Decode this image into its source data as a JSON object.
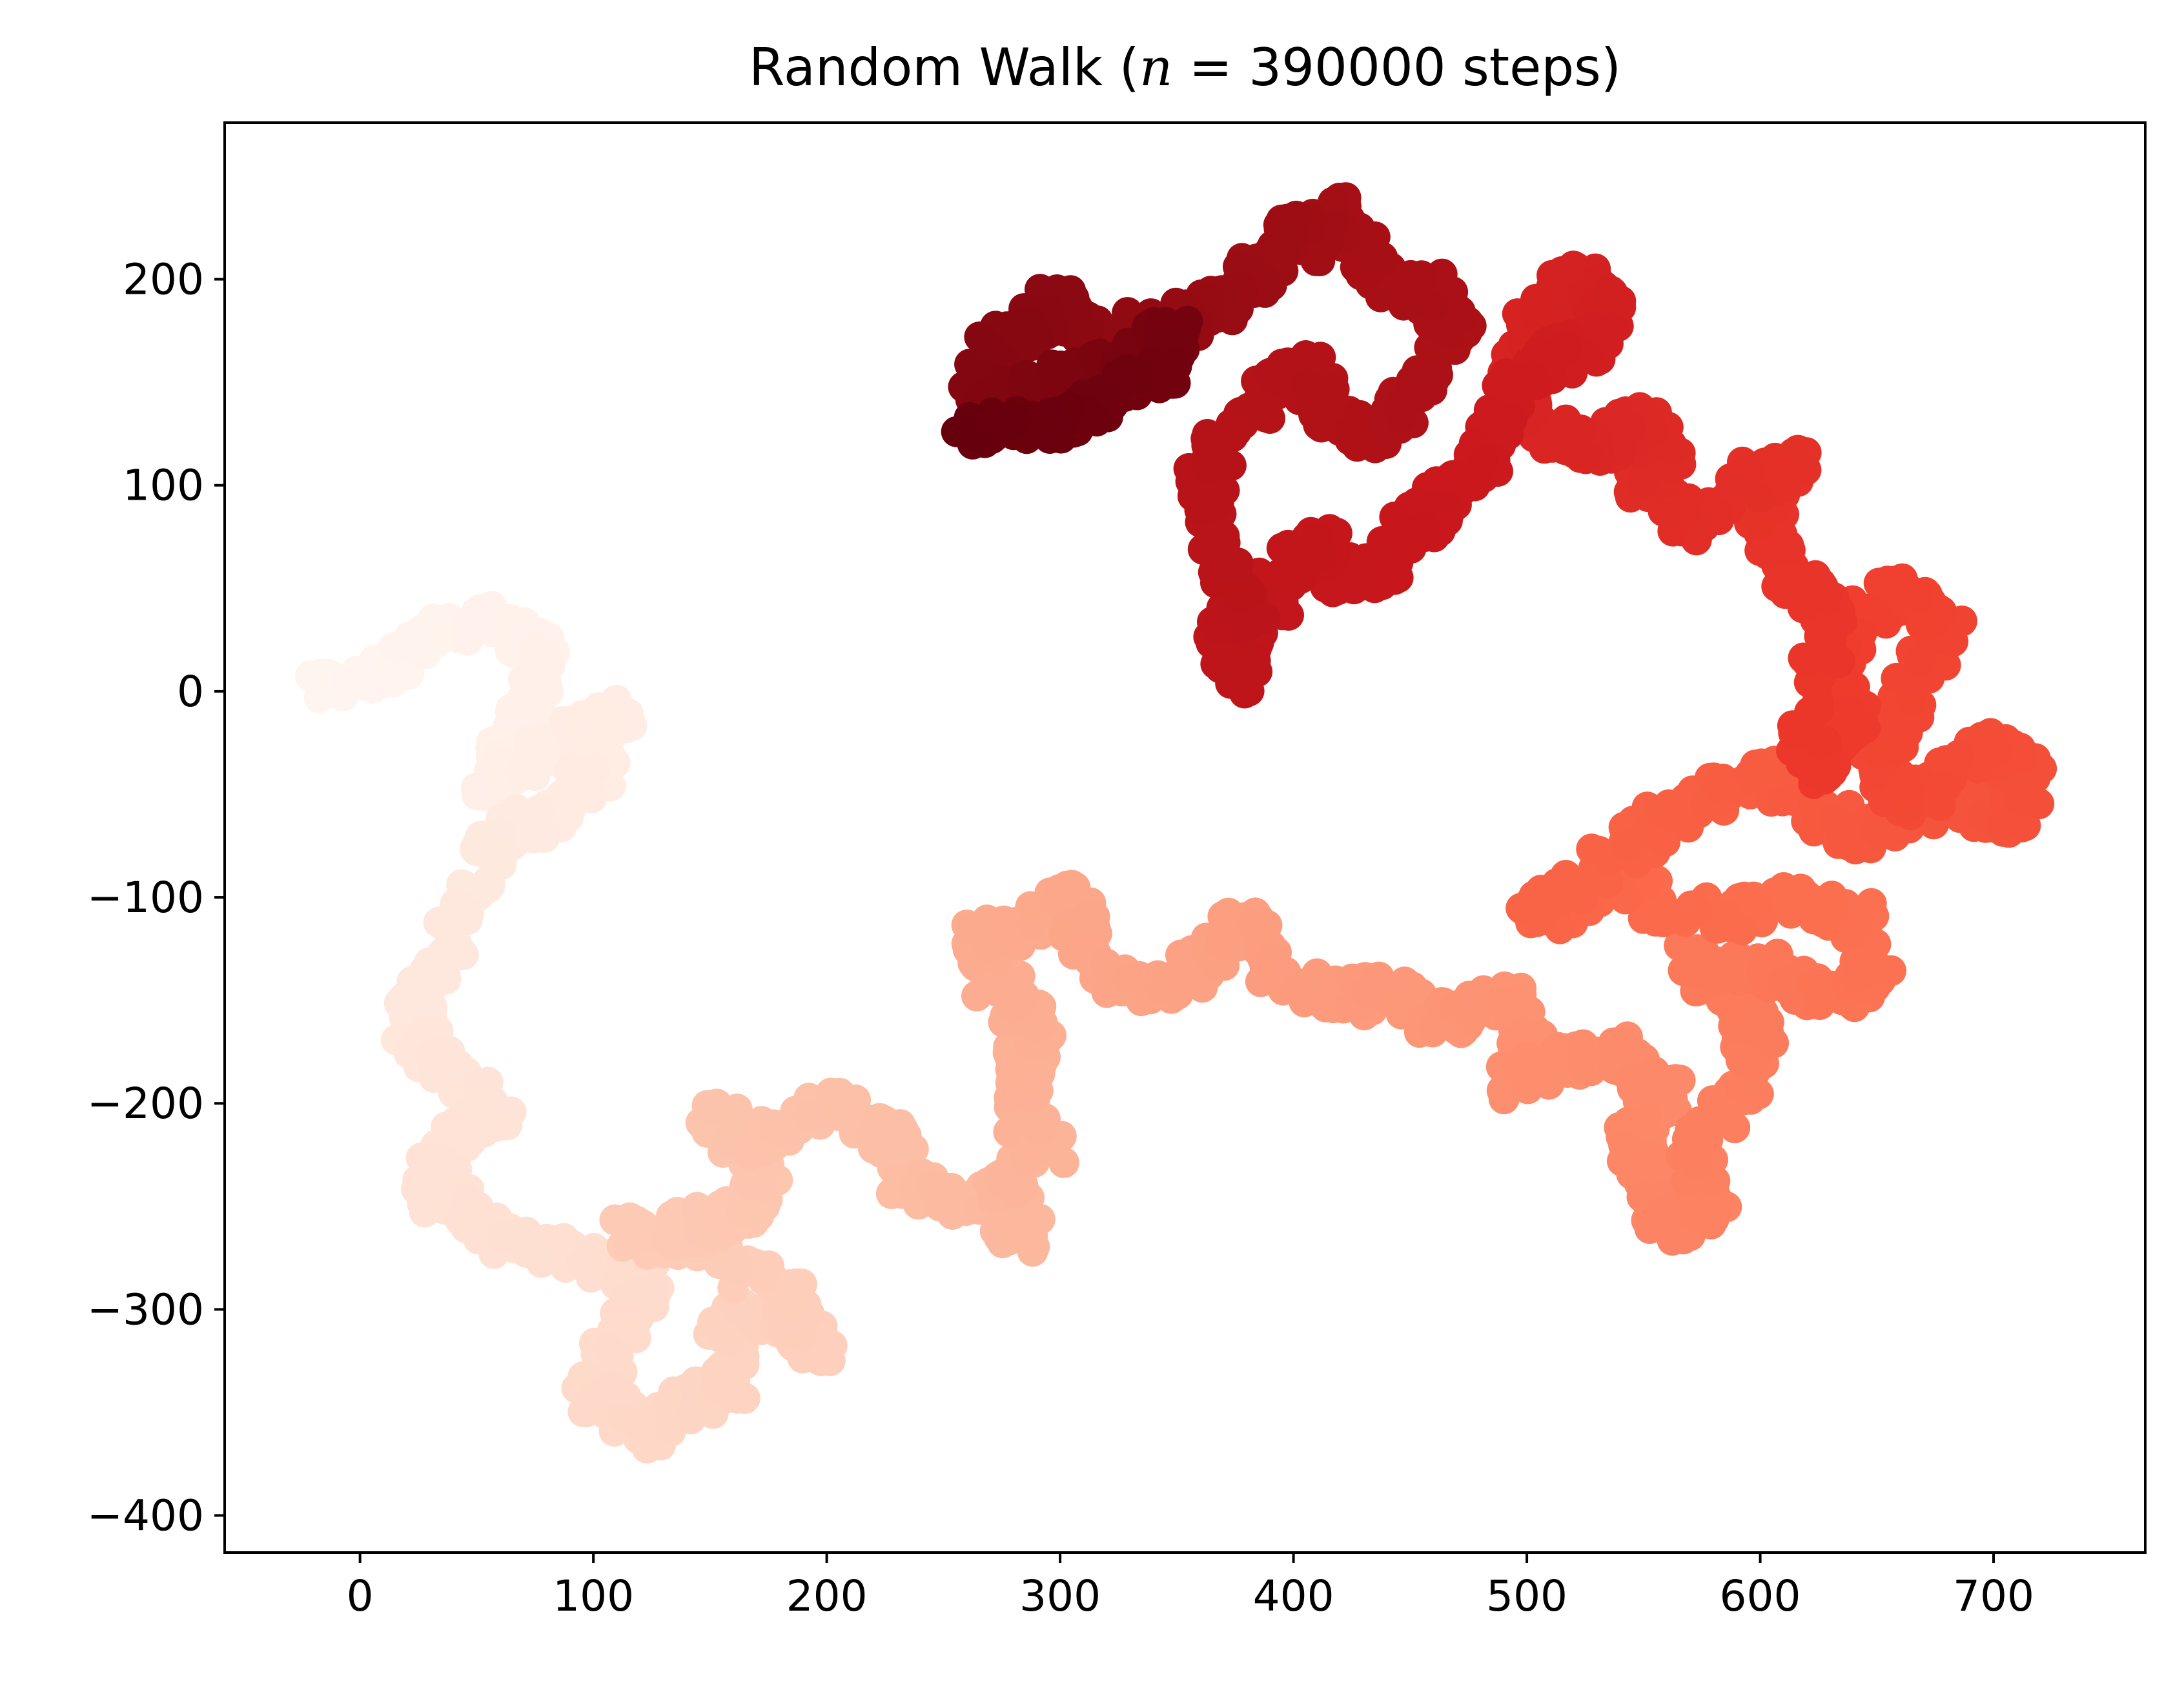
{
  "chart_data": {
    "type": "scatter",
    "title": "Random Walk ($n = 390000$ steps)",
    "title_parts": {
      "prefix": "Random Walk (",
      "variable": "n",
      "equals": " = ",
      "count": "390000",
      "suffix": " steps)"
    },
    "xlabel": "",
    "ylabel": "",
    "xlim": [
      -58,
      765
    ],
    "ylim": [
      -418,
      276
    ],
    "x_ticks": [
      0,
      100,
      200,
      300,
      400,
      500,
      600,
      700
    ],
    "y_ticks": [
      200,
      100,
      0,
      -100,
      -200,
      -300,
      -400
    ],
    "x_tick_labels": [
      "0",
      "100",
      "200",
      "300",
      "400",
      "500",
      "600",
      "700"
    ],
    "y_tick_labels": [
      "200",
      "100",
      "0",
      "−100",
      "−200",
      "−300",
      "−400"
    ],
    "grid": false,
    "legend": "none",
    "colormap": "Reds",
    "color_start": "#fff5f0",
    "color_end": "#67000d",
    "path_keypoints": [
      [
        -20,
        0
      ],
      [
        10,
        10
      ],
      [
        30,
        25
      ],
      [
        55,
        35
      ],
      [
        80,
        20
      ],
      [
        70,
        -15
      ],
      [
        55,
        -45
      ],
      [
        75,
        -35
      ],
      [
        95,
        -20
      ],
      [
        110,
        -10
      ],
      [
        100,
        -40
      ],
      [
        80,
        -60
      ],
      [
        60,
        -70
      ],
      [
        45,
        -100
      ],
      [
        30,
        -140
      ],
      [
        20,
        -160
      ],
      [
        30,
        -175
      ],
      [
        40,
        -185
      ],
      [
        60,
        -205
      ],
      [
        40,
        -215
      ],
      [
        30,
        -240
      ],
      [
        50,
        -260
      ],
      [
        75,
        -270
      ],
      [
        100,
        -275
      ],
      [
        125,
        -285
      ],
      [
        110,
        -310
      ],
      [
        100,
        -340
      ],
      [
        120,
        -360
      ],
      [
        140,
        -345
      ],
      [
        160,
        -340
      ],
      [
        155,
        -310
      ],
      [
        170,
        -300
      ],
      [
        195,
        -320
      ],
      [
        180,
        -290
      ],
      [
        150,
        -270
      ],
      [
        115,
        -262
      ],
      [
        145,
        -260
      ],
      [
        160,
        -255
      ],
      [
        175,
        -240
      ],
      [
        150,
        -205
      ],
      [
        175,
        -220
      ],
      [
        200,
        -200
      ],
      [
        225,
        -215
      ],
      [
        235,
        -240
      ],
      [
        250,
        -245
      ],
      [
        270,
        -250
      ],
      [
        285,
        -265
      ],
      [
        275,
        -240
      ],
      [
        295,
        -225
      ],
      [
        285,
        -205
      ],
      [
        285,
        -180
      ],
      [
        290,
        -160
      ],
      [
        270,
        -140
      ],
      [
        265,
        -120
      ],
      [
        290,
        -115
      ],
      [
        305,
        -100
      ],
      [
        310,
        -130
      ],
      [
        335,
        -145
      ],
      [
        355,
        -140
      ],
      [
        370,
        -120
      ],
      [
        380,
        -110
      ],
      [
        395,
        -140
      ],
      [
        420,
        -150
      ],
      [
        440,
        -145
      ],
      [
        460,
        -160
      ],
      [
        470,
        -155
      ],
      [
        495,
        -150
      ],
      [
        500,
        -170
      ],
      [
        490,
        -190
      ],
      [
        520,
        -180
      ],
      [
        540,
        -175
      ],
      [
        560,
        -195
      ],
      [
        545,
        -220
      ],
      [
        555,
        -240
      ],
      [
        560,
        -260
      ],
      [
        580,
        -255
      ],
      [
        570,
        -225
      ],
      [
        590,
        -195
      ],
      [
        600,
        -170
      ],
      [
        590,
        -150
      ],
      [
        570,
        -130
      ],
      [
        600,
        -135
      ],
      [
        620,
        -145
      ],
      [
        640,
        -150
      ],
      [
        650,
        -130
      ],
      [
        640,
        -110
      ],
      [
        615,
        -100
      ],
      [
        590,
        -110
      ],
      [
        560,
        -105
      ],
      [
        540,
        -90
      ],
      [
        520,
        -105
      ],
      [
        500,
        -110
      ],
      [
        540,
        -80
      ],
      [
        560,
        -60
      ],
      [
        580,
        -50
      ],
      [
        600,
        -40
      ],
      [
        620,
        -55
      ],
      [
        640,
        -70
      ],
      [
        660,
        -60
      ],
      [
        690,
        -55
      ],
      [
        710,
        -65
      ],
      [
        715,
        -40
      ],
      [
        700,
        -25
      ],
      [
        680,
        -40
      ],
      [
        660,
        -55
      ],
      [
        650,
        -30
      ],
      [
        665,
        0
      ],
      [
        680,
        30
      ],
      [
        660,
        50
      ],
      [
        640,
        30
      ],
      [
        630,
        10
      ],
      [
        640,
        -15
      ],
      [
        625,
        -40
      ],
      [
        620,
        -20
      ],
      [
        630,
        40
      ],
      [
        610,
        60
      ],
      [
        600,
        90
      ],
      [
        615,
        110
      ],
      [
        590,
        100
      ],
      [
        570,
        80
      ],
      [
        550,
        100
      ],
      [
        560,
        120
      ],
      [
        545,
        135
      ],
      [
        530,
        115
      ],
      [
        510,
        125
      ],
      [
        495,
        150
      ],
      [
        505,
        180
      ],
      [
        520,
        200
      ],
      [
        535,
        190
      ],
      [
        530,
        170
      ],
      [
        510,
        160
      ],
      [
        490,
        140
      ],
      [
        480,
        110
      ],
      [
        470,
        100
      ],
      [
        455,
        85
      ],
      [
        440,
        60
      ],
      [
        420,
        55
      ],
      [
        410,
        75
      ],
      [
        395,
        55
      ],
      [
        385,
        30
      ],
      [
        375,
        5
      ],
      [
        370,
        25
      ],
      [
        380,
        40
      ],
      [
        370,
        65
      ],
      [
        360,
        95
      ],
      [
        370,
        120
      ],
      [
        390,
        145
      ],
      [
        405,
        160
      ],
      [
        415,
        135
      ],
      [
        435,
        125
      ],
      [
        450,
        140
      ],
      [
        470,
        175
      ],
      [
        460,
        195
      ],
      [
        440,
        195
      ],
      [
        430,
        215
      ],
      [
        420,
        235
      ],
      [
        410,
        215
      ],
      [
        400,
        230
      ],
      [
        385,
        205
      ],
      [
        375,
        190
      ],
      [
        355,
        185
      ],
      [
        345,
        170
      ],
      [
        330,
        180
      ],
      [
        310,
        170
      ],
      [
        300,
        190
      ],
      [
        285,
        175
      ],
      [
        270,
        165
      ],
      [
        265,
        150
      ],
      [
        280,
        140
      ],
      [
        300,
        150
      ],
      [
        320,
        155
      ],
      [
        335,
        165
      ],
      [
        350,
        175
      ],
      [
        345,
        155
      ],
      [
        325,
        145
      ],
      [
        300,
        130
      ],
      [
        280,
        130
      ],
      [
        260,
        125
      ]
    ]
  }
}
